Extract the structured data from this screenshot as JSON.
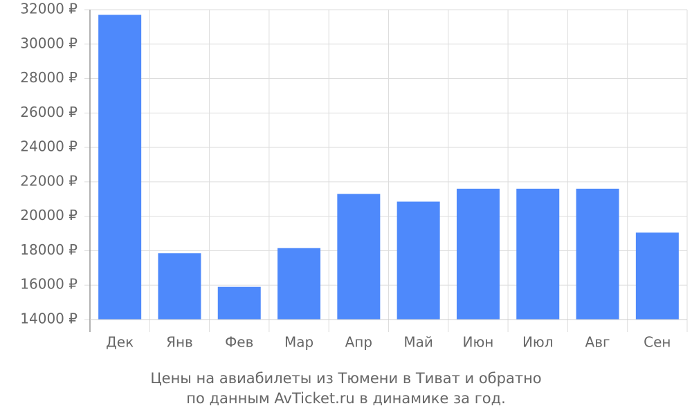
{
  "chart_data": {
    "type": "bar",
    "title": "Цены на авиабилеты из Тюмени в Тиват и обратно",
    "subtitle": "по данным AvTicket.ru в динамике за год.",
    "categories": [
      "Дек",
      "Янв",
      "Фев",
      "Мар",
      "Апр",
      "Май",
      "Июн",
      "Июл",
      "Авг",
      "Сен"
    ],
    "values": [
      31700,
      17850,
      15900,
      18150,
      21300,
      20850,
      21600,
      21600,
      21600,
      19050
    ],
    "color": "#4e89fb",
    "ylim": [
      14000,
      32000
    ],
    "yticks": [
      {
        "value": 14000,
        "label": "14000 ₽"
      },
      {
        "value": 16000,
        "label": "16000 ₽"
      },
      {
        "value": 18000,
        "label": "18000 ₽"
      },
      {
        "value": 20000,
        "label": "20000 ₽"
      },
      {
        "value": 22000,
        "label": "22000 ₽"
      },
      {
        "value": 24000,
        "label": "24000 ₽"
      },
      {
        "value": 26000,
        "label": "26000 ₽"
      },
      {
        "value": 28000,
        "label": "28000 ₽"
      },
      {
        "value": 30000,
        "label": "30000 ₽"
      },
      {
        "value": 32000,
        "label": "32000 ₽"
      }
    ],
    "grid": true
  }
}
